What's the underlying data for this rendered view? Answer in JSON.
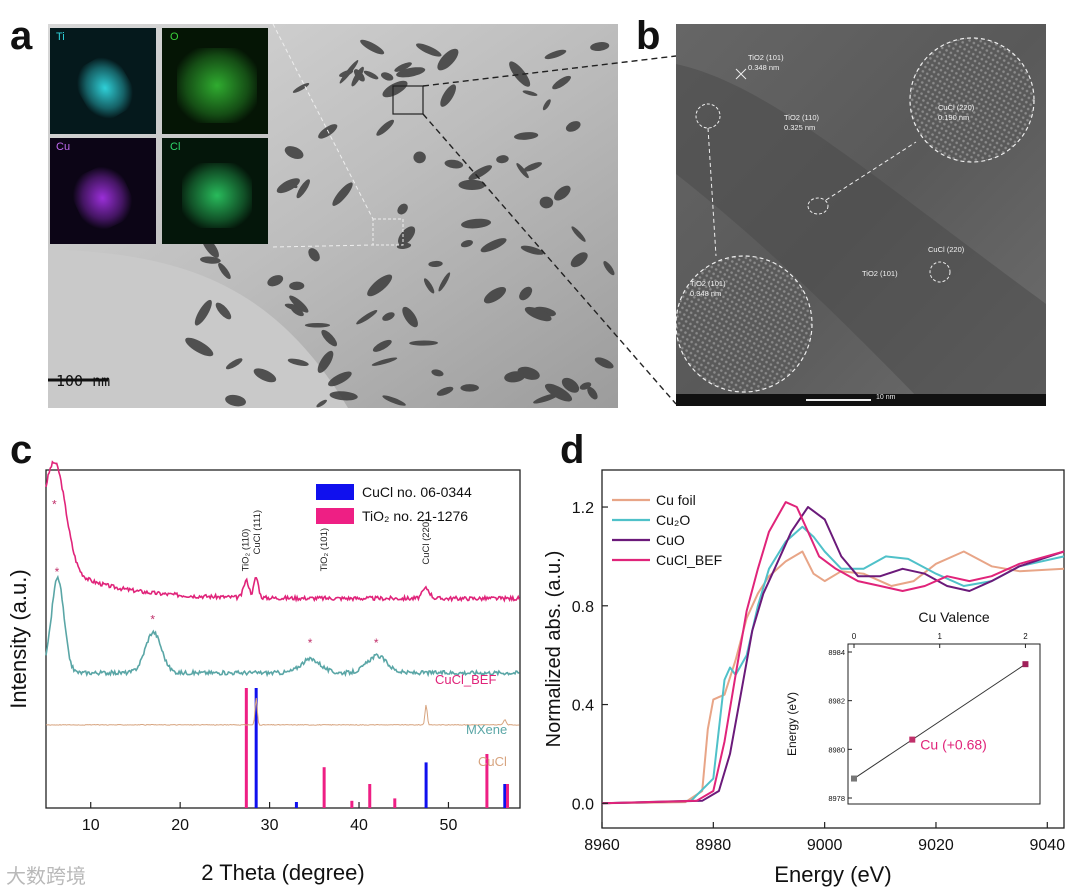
{
  "panels": {
    "a": {
      "letter": "a",
      "scale_bar": "100 nm",
      "eds_maps": [
        {
          "label": "Ti",
          "color": "#2fd0d8",
          "bg": "#05191c"
        },
        {
          "label": "O",
          "color": "#3ad13a",
          "bg": "#051505"
        },
        {
          "label": "Cu",
          "color": "#9a2fd8",
          "bg": "#0c0516"
        },
        {
          "label": "Cl",
          "color": "#2fd86a",
          "bg": "#04160a"
        }
      ]
    },
    "b": {
      "letter": "b",
      "annotations": [
        {
          "line1": "TiO2 (101)",
          "line2": "0.348 nm"
        },
        {
          "line1": "TiO2 (110)",
          "line2": "0.325 nm"
        },
        {
          "line1": "CuCl (220)",
          "line2": "0.190 nm"
        },
        {
          "line1": "CuCl (220)",
          "line2": ""
        },
        {
          "line1": "TiO2 (101)",
          "line2": ""
        },
        {
          "line1": "TiO2 (101)",
          "line2": "0.348 nm"
        }
      ],
      "scale_bar": "10 nm"
    },
    "c": {
      "letter": "c",
      "legend": [
        {
          "label": "CuCl no. 06-0344",
          "color": "#1010ee"
        },
        {
          "label": "TiO₂ no. 21-1276",
          "color": "#ee1f84"
        }
      ],
      "peak_labels": [
        "TiO₂ (110)",
        "CuCl (111)",
        "TiO₂ (101)",
        "CuCl (220)"
      ],
      "trace_labels": [
        {
          "text": "CuCl_BEF",
          "color": "#e0247a"
        },
        {
          "text": "MXene",
          "color": "#5aa6a6"
        },
        {
          "text": "CuCl",
          "color": "#d7a47f"
        }
      ]
    },
    "d": {
      "letter": "d",
      "legend": [
        {
          "label": "Cu foil",
          "color": "#e8a587"
        },
        {
          "label": "Cu₂O",
          "color": "#4fc1c9"
        },
        {
          "label": "CuO",
          "color": "#6b1a7a"
        },
        {
          "label": "CuCl_BEF",
          "color": "#e0247a"
        }
      ],
      "inset": {
        "title": "Cu Valence",
        "ylabel": "Energy (eV)",
        "x_ticks": [
          "0",
          "1",
          "2"
        ],
        "y_ticks": [
          "8978",
          "8980",
          "8982",
          "8984"
        ],
        "annotation": "Cu (+0.68)",
        "annotation_color": "#e0247a"
      }
    }
  },
  "watermark": "大数跨境",
  "chart_data": [
    {
      "type": "line",
      "panel": "c",
      "xlabel": "2 Theta (degree)",
      "ylabel": "Intensity (a.u.)",
      "xlim": [
        5,
        58
      ],
      "x_ticks": [
        10,
        20,
        30,
        40,
        50
      ],
      "series": [
        {
          "name": "CuCl_BEF",
          "color": "#e0247a",
          "baseline": 0.62,
          "peaks": [
            [
              6.0,
              0.3,
              1.2
            ],
            [
              27.4,
              0.05,
              0.3
            ],
            [
              28.5,
              0.06,
              0.25
            ],
            [
              47.5,
              0.03,
              0.4
            ]
          ]
        },
        {
          "name": "MXene",
          "color": "#5aa6a6",
          "baseline": 0.4,
          "peaks": [
            [
              6.3,
              0.28,
              0.7
            ],
            [
              17.0,
              0.12,
              0.9
            ],
            [
              34.6,
              0.04,
              1.1
            ],
            [
              42.0,
              0.05,
              1.1
            ]
          ]
        },
        {
          "name": "CuCl",
          "color": "#d7a47f",
          "baseline": 0.246,
          "peaks": [
            [
              28.5,
              0.08,
              0.12
            ],
            [
              47.5,
              0.06,
              0.12
            ],
            [
              56.3,
              0.015,
              0.15
            ]
          ]
        }
      ],
      "reference_sticks": [
        {
          "name": "CuCl no. 06-0344",
          "color": "#1010ee",
          "positions": [
            28.5,
            33.0,
            47.5,
            56.3
          ],
          "heights": [
            1.0,
            0.05,
            0.38,
            0.2
          ]
        },
        {
          "name": "TiO₂ no. 21-1276",
          "color": "#ee1f84",
          "positions": [
            27.4,
            36.1,
            39.2,
            41.2,
            44.0,
            54.3,
            56.6
          ],
          "heights": [
            1.0,
            0.34,
            0.06,
            0.2,
            0.08,
            0.45,
            0.2
          ]
        }
      ]
    },
    {
      "type": "line",
      "panel": "d",
      "xlabel": "Energy (eV)",
      "ylabel": "Normalized abs. (a.u.)",
      "xlim": [
        8960,
        9043
      ],
      "ylim": [
        -0.1,
        1.35
      ],
      "x_ticks": [
        8960,
        8980,
        9000,
        9020,
        9040
      ],
      "y_ticks": [
        0.0,
        0.4,
        0.8,
        1.2
      ],
      "series": [
        {
          "name": "Cu foil",
          "color": "#e8a587",
          "points": [
            [
              8960,
              0
            ],
            [
              8975,
              0.005
            ],
            [
              8978,
              0.05
            ],
            [
              8979,
              0.3
            ],
            [
              8980,
              0.42
            ],
            [
              8981,
              0.43
            ],
            [
              8982,
              0.44
            ],
            [
              8984,
              0.58
            ],
            [
              8986,
              0.75
            ],
            [
              8988,
              0.85
            ],
            [
              8990,
              0.92
            ],
            [
              8993,
              0.98
            ],
            [
              8996,
              1.02
            ],
            [
              8998,
              0.93
            ],
            [
              9000,
              0.9
            ],
            [
              9003,
              0.94
            ],
            [
              9007,
              0.93
            ],
            [
              9012,
              0.88
            ],
            [
              9016,
              0.9
            ],
            [
              9020,
              0.97
            ],
            [
              9025,
              1.02
            ],
            [
              9030,
              0.96
            ],
            [
              9035,
              0.94
            ],
            [
              9043,
              0.95
            ]
          ]
        },
        {
          "name": "Cu₂O",
          "color": "#4fc1c9",
          "points": [
            [
              8960,
              0
            ],
            [
              8976,
              0.01
            ],
            [
              8980,
              0.1
            ],
            [
              8982,
              0.5
            ],
            [
              8983,
              0.55
            ],
            [
              8984,
              0.52
            ],
            [
              8986,
              0.6
            ],
            [
              8988,
              0.8
            ],
            [
              8990,
              0.95
            ],
            [
              8993,
              1.06
            ],
            [
              8996,
              1.12
            ],
            [
              8998,
              1.08
            ],
            [
              9000,
              1.02
            ],
            [
              9003,
              0.95
            ],
            [
              9007,
              0.95
            ],
            [
              9011,
              1.0
            ],
            [
              9015,
              0.99
            ],
            [
              9020,
              0.93
            ],
            [
              9025,
              0.88
            ],
            [
              9030,
              0.9
            ],
            [
              9035,
              0.96
            ],
            [
              9043,
              1.0
            ]
          ]
        },
        {
          "name": "CuO",
          "color": "#6b1a7a",
          "points": [
            [
              8960,
              0
            ],
            [
              8978,
              0.01
            ],
            [
              8981,
              0.05
            ],
            [
              8983,
              0.2
            ],
            [
              8985,
              0.45
            ],
            [
              8987,
              0.7
            ],
            [
              8989,
              0.85
            ],
            [
              8991,
              0.95
            ],
            [
              8994,
              1.1
            ],
            [
              8997,
              1.2
            ],
            [
              9000,
              1.15
            ],
            [
              9003,
              1.0
            ],
            [
              9006,
              0.92
            ],
            [
              9010,
              0.92
            ],
            [
              9014,
              0.95
            ],
            [
              9018,
              0.93
            ],
            [
              9022,
              0.88
            ],
            [
              9026,
              0.86
            ],
            [
              9030,
              0.9
            ],
            [
              9035,
              0.96
            ],
            [
              9043,
              1.02
            ]
          ]
        },
        {
          "name": "CuCl_BEF",
          "color": "#e0247a",
          "points": [
            [
              8960,
              0
            ],
            [
              8977,
              0.01
            ],
            [
              8980,
              0.05
            ],
            [
              8982,
              0.25
            ],
            [
              8984,
              0.52
            ],
            [
              8986,
              0.78
            ],
            [
              8988,
              0.95
            ],
            [
              8990,
              1.1
            ],
            [
              8993,
              1.22
            ],
            [
              8995,
              1.2
            ],
            [
              8997,
              1.1
            ],
            [
              8999,
              1.0
            ],
            [
              9002,
              0.95
            ],
            [
              9006,
              0.9
            ],
            [
              9010,
              0.88
            ],
            [
              9014,
              0.86
            ],
            [
              9018,
              0.88
            ],
            [
              9022,
              0.92
            ],
            [
              9026,
              0.9
            ],
            [
              9030,
              0.92
            ],
            [
              9035,
              0.97
            ],
            [
              9043,
              1.02
            ]
          ]
        }
      ],
      "inset": {
        "xlabel": "Cu Valence",
        "ylabel": "Energy (eV)",
        "xlim": [
          0,
          2.1
        ],
        "ylim": [
          8978,
          8984
        ],
        "points": [
          [
            0,
            8978.8
          ],
          [
            0.68,
            8980.4
          ],
          [
            2,
            8983.5
          ]
        ]
      }
    }
  ]
}
